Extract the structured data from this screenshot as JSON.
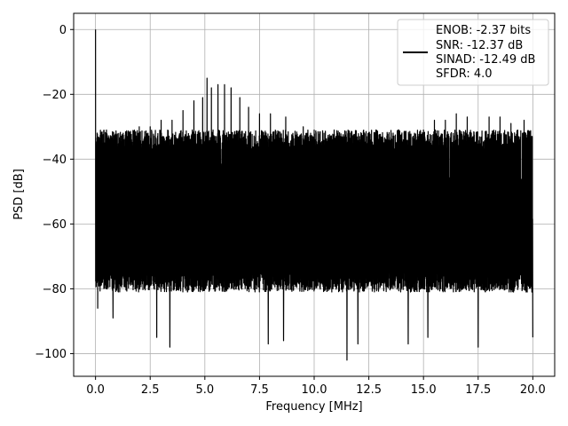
{
  "chart_data": {
    "type": "line",
    "xlabel": "Frequency [MHz]",
    "ylabel": "PSD [dB]",
    "xlim": [
      -1,
      21
    ],
    "ylim": [
      -107,
      5
    ],
    "xticks": [
      0.0,
      2.5,
      5.0,
      7.5,
      10.0,
      12.5,
      15.0,
      17.5,
      20.0
    ],
    "xtick_labels": [
      "0.0",
      "2.5",
      "5.0",
      "7.5",
      "10.0",
      "12.5",
      "15.0",
      "17.5",
      "20.0"
    ],
    "yticks": [
      0,
      -20,
      -40,
      -60,
      -80,
      -100
    ],
    "ytick_labels": [
      "0",
      "−20",
      "−40",
      "−60",
      "−80",
      "−100"
    ],
    "grid": true,
    "series_color": "#000000",
    "x_range": [
      0,
      20
    ],
    "noise_floor": {
      "center_db": -55,
      "lower_envelope_db": -78,
      "upper_envelope_db": -34
    },
    "peak": {
      "x": 0.0,
      "y": 0.0
    },
    "spurs": [
      {
        "x": 0.1,
        "y": -26
      },
      {
        "x": 0.5,
        "y": -31
      },
      {
        "x": 1.3,
        "y": -34
      },
      {
        "x": 2.0,
        "y": -30
      },
      {
        "x": 2.5,
        "y": -30
      },
      {
        "x": 3.0,
        "y": -28
      },
      {
        "x": 3.5,
        "y": -28
      },
      {
        "x": 4.0,
        "y": -25
      },
      {
        "x": 4.5,
        "y": -22
      },
      {
        "x": 4.9,
        "y": -21
      },
      {
        "x": 5.1,
        "y": -15
      },
      {
        "x": 5.3,
        "y": -18
      },
      {
        "x": 5.6,
        "y": -17
      },
      {
        "x": 5.9,
        "y": -17
      },
      {
        "x": 6.2,
        "y": -18
      },
      {
        "x": 6.6,
        "y": -21
      },
      {
        "x": 7.0,
        "y": -24
      },
      {
        "x": 7.5,
        "y": -26
      },
      {
        "x": 8.0,
        "y": -26
      },
      {
        "x": 8.7,
        "y": -27
      },
      {
        "x": 9.5,
        "y": -30
      },
      {
        "x": 10.0,
        "y": -31
      },
      {
        "x": 11.0,
        "y": -33
      },
      {
        "x": 12.0,
        "y": -33
      },
      {
        "x": 13.0,
        "y": -34
      },
      {
        "x": 14.0,
        "y": -33
      },
      {
        "x": 15.0,
        "y": -31
      },
      {
        "x": 15.5,
        "y": -28
      },
      {
        "x": 16.0,
        "y": -28
      },
      {
        "x": 16.5,
        "y": -26
      },
      {
        "x": 17.0,
        "y": -27
      },
      {
        "x": 17.5,
        "y": -27
      },
      {
        "x": 18.0,
        "y": -27
      },
      {
        "x": 18.5,
        "y": -27
      },
      {
        "x": 19.0,
        "y": -29
      },
      {
        "x": 19.6,
        "y": -28
      },
      {
        "x": 20.0,
        "y": -30
      }
    ],
    "dips": [
      {
        "x": 0.1,
        "y": -86
      },
      {
        "x": 0.8,
        "y": -89
      },
      {
        "x": 2.8,
        "y": -95
      },
      {
        "x": 3.4,
        "y": -98
      },
      {
        "x": 7.9,
        "y": -97
      },
      {
        "x": 8.6,
        "y": -96
      },
      {
        "x": 11.5,
        "y": -102
      },
      {
        "x": 12.0,
        "y": -97
      },
      {
        "x": 14.3,
        "y": -97
      },
      {
        "x": 15.2,
        "y": -95
      },
      {
        "x": 17.5,
        "y": -98
      },
      {
        "x": 20.0,
        "y": -95
      }
    ],
    "legend": {
      "placement": "top-right",
      "entries": [
        "ENOB: -2.37 bits",
        "SNR: -12.37 dB",
        "SINAD: -12.49 dB",
        "SFDR: 4.0"
      ]
    }
  }
}
